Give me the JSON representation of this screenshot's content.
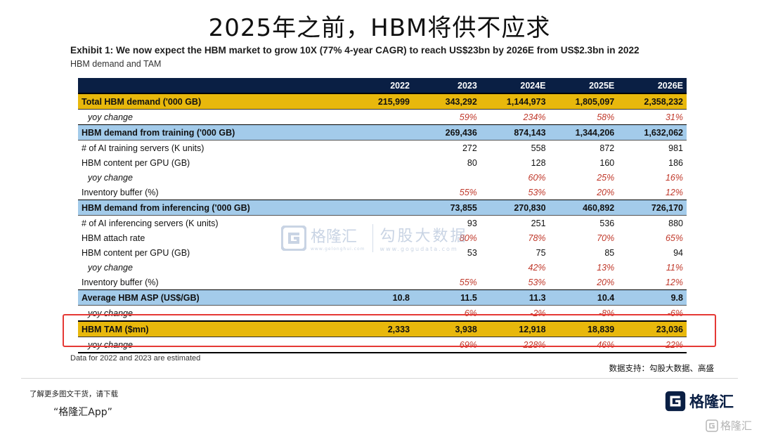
{
  "page_title": "2025年之前，HBM将供不应求",
  "exhibit_title": "Exhibit 1: We now expect the HBM market to grow 10X (77% 4-year CAGR) to reach US$23bn by 2026E from US$2.3bn in 2022",
  "subtitle": "HBM demand and TAM",
  "table": {
    "headers": [
      "",
      "2022",
      "2023",
      "2024E",
      "2025E",
      "2026E"
    ],
    "rows": [
      {
        "label": "Total HBM demand ('000 GB)",
        "values": [
          "215,999",
          "343,292",
          "1,144,973",
          "1,805,097",
          "2,358,232"
        ]
      },
      {
        "label": "yoy change",
        "values": [
          "",
          "59%",
          "234%",
          "58%",
          "31%"
        ]
      },
      {
        "label": "HBM demand from training ('000 GB)",
        "values": [
          "",
          "269,436",
          "874,143",
          "1,344,206",
          "1,632,062"
        ]
      },
      {
        "label": "# of AI training servers (K units)",
        "values": [
          "",
          "272",
          "558",
          "872",
          "981"
        ]
      },
      {
        "label": "HBM content per GPU (GB)",
        "values": [
          "",
          "80",
          "128",
          "160",
          "186"
        ]
      },
      {
        "label": "yoy change",
        "values": [
          "",
          "",
          "60%",
          "25%",
          "16%"
        ]
      },
      {
        "label": "Inventory buffer (%)",
        "values": [
          "",
          "55%",
          "53%",
          "20%",
          "12%"
        ]
      },
      {
        "label": "HBM demand from inferencing ('000 GB)",
        "values": [
          "",
          "73,855",
          "270,830",
          "460,892",
          "726,170"
        ]
      },
      {
        "label": "# of AI inferencing servers (K units)",
        "values": [
          "",
          "93",
          "251",
          "536",
          "880"
        ]
      },
      {
        "label": "HBM attach rate",
        "values": [
          "",
          "80%",
          "78%",
          "70%",
          "65%"
        ]
      },
      {
        "label": "HBM content per GPU (GB)",
        "values": [
          "",
          "53",
          "75",
          "85",
          "94"
        ]
      },
      {
        "label": "yoy change",
        "values": [
          "",
          "",
          "42%",
          "13%",
          "11%"
        ]
      },
      {
        "label": "Inventory buffer (%)",
        "values": [
          "",
          "55%",
          "53%",
          "20%",
          "12%"
        ]
      },
      {
        "label": "Average HBM ASP (US$/GB)",
        "values": [
          "10.8",
          "11.5",
          "11.3",
          "10.4",
          "9.8"
        ]
      },
      {
        "label": "yoy change",
        "values": [
          "",
          "6%",
          "-2%",
          "-8%",
          "-6%"
        ]
      },
      {
        "label": "HBM TAM ($mn)",
        "values": [
          "2,333",
          "3,938",
          "12,918",
          "18,839",
          "23,036"
        ]
      },
      {
        "label": "yoy change",
        "values": [
          "",
          "69%",
          "228%",
          "46%",
          "22%"
        ]
      }
    ]
  },
  "note": "Data for 2022 and 2023 are estimated",
  "source": "数据支持：勾股大数据、高盛",
  "promo_line1": "了解更多图文干货，请下载",
  "promo_line2": "“格隆汇App”",
  "logo_text": "格隆汇",
  "watermark": {
    "brand": "格隆汇",
    "brand_url": "www.gelonghui.com",
    "gogu": "勾股大数据",
    "gogu_url": "www.gogudata.com"
  },
  "colors": {
    "header_bg": "#0a1f44",
    "gold_row": "#e8b80c",
    "blue_row": "#a3cbea",
    "red_text": "#c0392b",
    "highlight_border": "#e53935"
  }
}
